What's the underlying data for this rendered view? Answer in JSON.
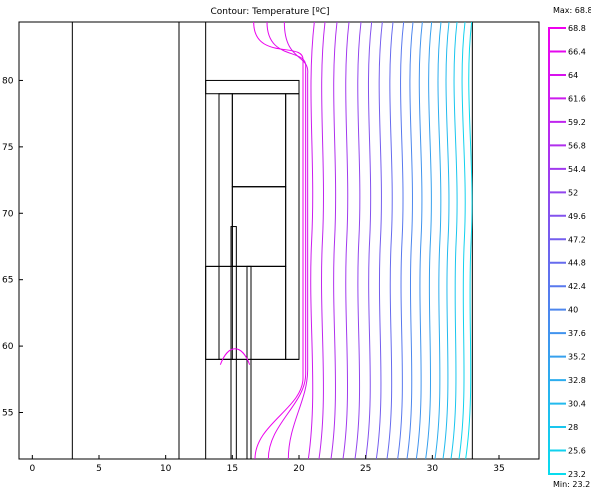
{
  "chart_data": {
    "type": "contour",
    "title": "Contour: Temperature [ºC]",
    "xlim": [
      -1,
      38
    ],
    "ylim": [
      51.5,
      84.4
    ],
    "x_ticks": [
      0,
      5,
      10,
      15,
      20,
      25,
      30,
      35
    ],
    "y_ticks": [
      55,
      60,
      65,
      70,
      75,
      80
    ],
    "grid": false,
    "colorbar": {
      "position": "right",
      "max_label": "Max: 68.8",
      "min_label": "Min: 23.2",
      "levels": [
        {
          "value": 68.8,
          "label": "68.8",
          "color": "#ee00ee"
        },
        {
          "value": 66.4,
          "label": "66.4",
          "color": "#e408ee"
        },
        {
          "value": 64,
          "label": "64",
          "color": "#d811ee"
        },
        {
          "value": 61.6,
          "label": "61.6",
          "color": "#cc1bee"
        },
        {
          "value": 59.2,
          "label": "59.2",
          "color": "#bf25ee"
        },
        {
          "value": 56.8,
          "label": "56.8",
          "color": "#b02fee"
        },
        {
          "value": 54.4,
          "label": "54.4",
          "color": "#a13aee"
        },
        {
          "value": 52,
          "label": "52",
          "color": "#9246ee"
        },
        {
          "value": 49.6,
          "label": "49.6",
          "color": "#8352ee"
        },
        {
          "value": 47.2,
          "label": "47.2",
          "color": "#745eee"
        },
        {
          "value": 44.8,
          "label": "44.8",
          "color": "#666bee"
        },
        {
          "value": 42.4,
          "label": "42.4",
          "color": "#5978ee"
        },
        {
          "value": 40,
          "label": "40",
          "color": "#4d86ee"
        },
        {
          "value": 37.6,
          "label": "37.6",
          "color": "#4193ee"
        },
        {
          "value": 35.2,
          "label": "35.2",
          "color": "#36a0ee"
        },
        {
          "value": 32.8,
          "label": "32.8",
          "color": "#2cadee"
        },
        {
          "value": 30.4,
          "label": "30.4",
          "color": "#22baee"
        },
        {
          "value": 28,
          "label": "28",
          "color": "#19c6ee"
        },
        {
          "value": 25.6,
          "label": "25.6",
          "color": "#11d1ee"
        },
        {
          "value": 23.2,
          "label": "23.2",
          "color": "#08dcee"
        }
      ]
    },
    "geometry": {
      "vlines_full": [
        3,
        11,
        13,
        33
      ],
      "rects": [
        {
          "x0": 13,
          "y0": 79,
          "x1": 20,
          "y1": 80
        },
        {
          "x0": 14,
          "y0": 59,
          "x1": 15,
          "y1": 79
        },
        {
          "x0": 19,
          "y0": 59,
          "x1": 20,
          "y1": 79
        },
        {
          "x0": 15,
          "y0": 72,
          "x1": 19,
          "y1": 79
        },
        {
          "x0": 15,
          "y0": 66,
          "x1": 19,
          "y1": 72
        },
        {
          "x0": 13,
          "y0": 66,
          "x1": 19,
          "y1": 59
        },
        {
          "x0": 14.9,
          "y0": 51.5,
          "x1": 15.3,
          "y1": 69
        },
        {
          "x0": 16.1,
          "y0": 51.5,
          "x1": 16.4,
          "y1": 66
        }
      ],
      "lines": [
        {
          "x0": 13,
          "y0": 59,
          "x1": 20,
          "y1": 59
        },
        {
          "x0": 13,
          "y0": 66,
          "x1": 19,
          "y1": 66
        },
        {
          "x0": 15,
          "y0": 72,
          "x1": 19,
          "y1": 72
        }
      ]
    },
    "contours": {
      "wide_x": [
        20.8,
        21.6,
        22.5,
        23.4,
        24.3,
        25.1,
        25.9,
        26.7,
        27.5,
        28.2,
        28.9,
        29.6,
        30.3,
        30.9,
        31.5,
        32.1,
        32.6
      ],
      "near": [
        {
          "top_x": 16.6,
          "mid_x": 20.3,
          "bot_x": 16.7
        },
        {
          "top_x": 17.6,
          "mid_x": 20.5,
          "bot_x": 17.7
        },
        {
          "top_x": 18.9,
          "mid_x": 20.65,
          "bot_x": 19.2
        }
      ],
      "hump": {
        "x0": 14.1,
        "x1": 16.3,
        "peak_y": 60.0
      }
    }
  }
}
